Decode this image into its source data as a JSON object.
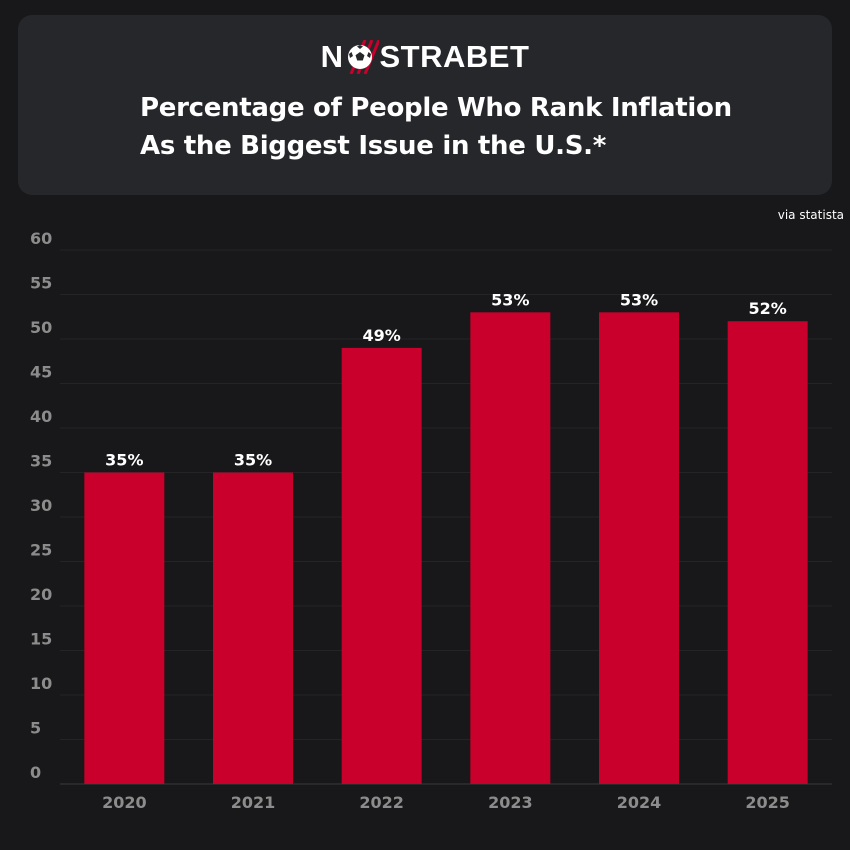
{
  "brand": {
    "logo_left": "N",
    "logo_right": "STRABET"
  },
  "header": {
    "title_line1": "Percentage of People Who Rank Inflation",
    "title_line2": "As the Biggest Issue in the U.S.*"
  },
  "source_note": "via statista",
  "colors": {
    "background": "#18181a",
    "card": "#26272b",
    "bar": "#c8002b",
    "tick": "#8c8c8c"
  },
  "chart_data": {
    "type": "bar",
    "title": "Percentage of People Who Rank Inflation As the Biggest Issue in the U.S.*",
    "xlabel": "",
    "ylabel": "",
    "categories": [
      "2020",
      "2021",
      "2022",
      "2023",
      "2024",
      "2025"
    ],
    "values": [
      35,
      35,
      49,
      53,
      53,
      52
    ],
    "data_labels": [
      "35%",
      "35%",
      "49%",
      "53%",
      "53%",
      "52%"
    ],
    "ylim": [
      0,
      60
    ],
    "yticks": [
      0,
      5,
      10,
      15,
      20,
      25,
      30,
      35,
      40,
      45,
      50,
      55,
      60
    ],
    "grid": true,
    "legend": "none"
  }
}
